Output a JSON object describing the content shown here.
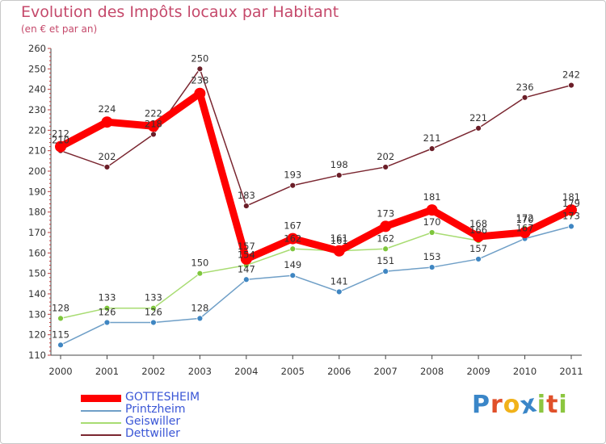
{
  "title": "Evolution des Impôts locaux par Habitant",
  "subtitle": "(en € et par an)",
  "logo": {
    "text": "Proxiti",
    "letter_colors": [
      "#3a86c8",
      "#e0502a",
      "#f1b21a",
      "#3a86c8",
      "#8cc63f",
      "#e0502a",
      "#8cc63f"
    ]
  },
  "chart_data": {
    "type": "line",
    "title": "Evolution des Impôts locaux par Habitant",
    "subtitle": "(en € et par an)",
    "xlabel": "",
    "ylabel": "",
    "ylim": [
      110,
      260
    ],
    "yticks": [
      110,
      120,
      130,
      140,
      150,
      160,
      170,
      180,
      190,
      200,
      210,
      220,
      230,
      240,
      250,
      260
    ],
    "x": [
      "2000",
      "2001",
      "2002",
      "2003",
      "2004",
      "2005",
      "2006",
      "2007",
      "2008",
      "2009",
      "2010",
      "2011"
    ],
    "series": [
      {
        "name": "Dettwiller",
        "color": "#7a2630",
        "marker": "#6b1e28",
        "width": "thin",
        "values": [
          210,
          202,
          218,
          250,
          183,
          193,
          198,
          202,
          211,
          221,
          236,
          242
        ]
      },
      {
        "name": "Printzheim",
        "color": "#6f9fc7",
        "marker": "#3f86c2",
        "width": "thin",
        "values": [
          115,
          126,
          126,
          128,
          147,
          149,
          141,
          151,
          153,
          157,
          167,
          173
        ]
      },
      {
        "name": "Geiswiller",
        "color": "#a8dc72",
        "marker": "#7ec63c",
        "width": "thin",
        "values": [
          128,
          133,
          133,
          150,
          154,
          162,
          161,
          162,
          170,
          166,
          172,
          179
        ]
      },
      {
        "name": "GOTTESHEIM",
        "color": "#ff0000",
        "marker": "#ff0000",
        "width": "thick",
        "values": [
          212,
          224,
          222,
          238,
          157,
          167,
          161,
          173,
          181,
          168,
          170,
          181
        ]
      }
    ],
    "legend_order": [
      "GOTTESHEIM",
      "Printzheim",
      "Geiswiller",
      "Dettwiller"
    ],
    "legend_position": "bottom-left",
    "grid": false
  }
}
